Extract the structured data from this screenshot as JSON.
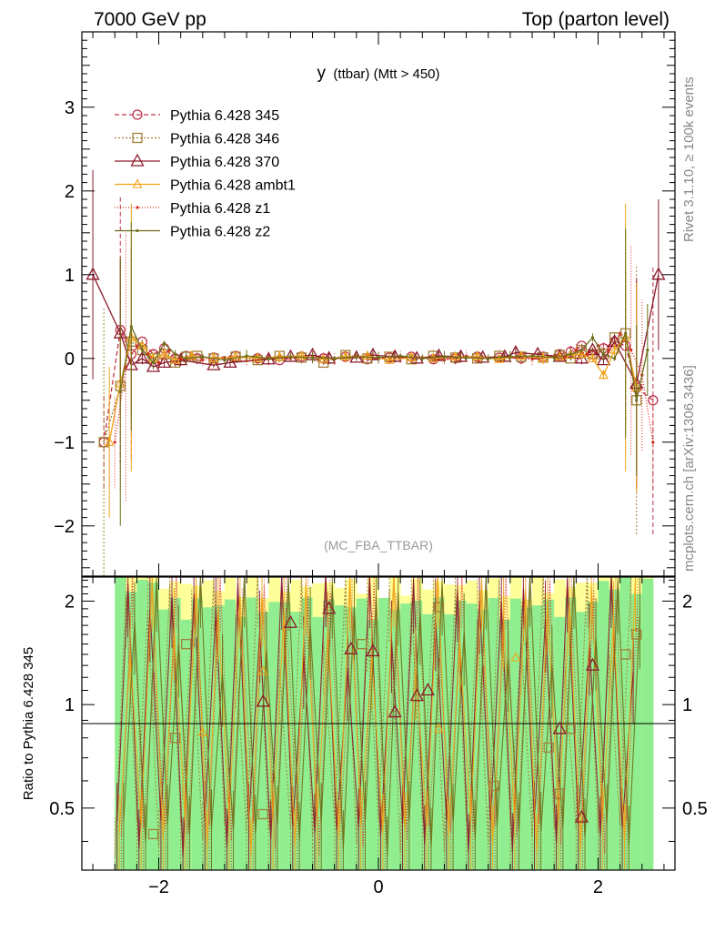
{
  "header": {
    "left": "7000 GeV pp",
    "right": "Top (parton level)"
  },
  "side_text": {
    "rivet": "Rivet 3.1.10, ≥ 100k events",
    "source": "mcplots.cern.ch [arXiv:1306.3436]"
  },
  "chart_data": [
    {
      "panel": "main",
      "type": "line",
      "title": "y (ttbar) (Mtt > 450)",
      "title_main": "y",
      "title_sub": "(ttbar) (Mtt > 450)",
      "watermark": "(MC_FBA_TTBAR)",
      "xlim": [
        -2.7,
        2.7
      ],
      "ylim": [
        -2.6,
        3.9
      ],
      "yticks": [
        -2,
        -1,
        0,
        1,
        2,
        3
      ],
      "ytick_labels": [
        "−2",
        "−1",
        "0",
        "1",
        "2",
        "3"
      ],
      "legend_position": "top-left",
      "series": [
        {
          "name": "Pythia 6.428 345",
          "color": "#c0334a",
          "dash": "5,3",
          "marker": "circle",
          "x": [
            -2.5,
            -2.35,
            -2.25,
            -2.15,
            -2.05,
            -1.95,
            -1.85,
            -1.75,
            -1.65,
            -1.5,
            -1.3,
            -1.1,
            -0.9,
            -0.7,
            -0.5,
            -0.3,
            -0.1,
            0.1,
            0.3,
            0.5,
            0.7,
            0.9,
            1.1,
            1.3,
            1.5,
            1.65,
            1.75,
            1.85,
            1.95,
            2.05,
            2.15,
            2.25,
            2.35,
            2.5
          ],
          "y": [
            -1.0,
            0.34,
            0.05,
            0.2,
            0.05,
            0.12,
            0.0,
            0.03,
            0.0,
            0.01,
            0.03,
            0.0,
            -0.02,
            0.02,
            0.0,
            0.02,
            -0.01,
            0.01,
            0.02,
            -0.01,
            0.0,
            0.02,
            0.01,
            0.0,
            0.02,
            0.05,
            0.08,
            0.15,
            0.05,
            0.12,
            0.2,
            0.15,
            -0.35,
            -0.5
          ]
        },
        {
          "name": "Pythia 6.428 346",
          "color": "#a0803a",
          "dash": "2,2",
          "marker": "square",
          "x": [
            -2.5,
            -2.35,
            -2.25,
            -2.15,
            -2.05,
            -1.95,
            -1.85,
            -1.75,
            -1.65,
            -1.5,
            -1.3,
            -1.1,
            -0.9,
            -0.7,
            -0.5,
            -0.3,
            -0.1,
            0.1,
            0.3,
            0.5,
            0.7,
            0.9,
            1.1,
            1.3,
            1.5,
            1.65,
            1.75,
            1.85,
            1.95,
            2.05,
            2.15,
            2.25,
            2.35
          ],
          "y": [
            -1.0,
            -0.33,
            0.2,
            0.1,
            0.0,
            0.05,
            -0.05,
            0.02,
            0.03,
            0.0,
            0.02,
            -0.02,
            0.03,
            0.01,
            -0.05,
            0.04,
            0.0,
            0.02,
            -0.01,
            0.03,
            0.01,
            0.0,
            0.03,
            0.02,
            0.01,
            0.04,
            0.0,
            0.1,
            0.05,
            0.05,
            0.25,
            0.3,
            -0.5
          ]
        },
        {
          "name": "Pythia 6.428 370",
          "color": "#8b1a2a",
          "dash": "",
          "marker": "triangle",
          "x": [
            -2.6,
            -2.35,
            -2.25,
            -2.15,
            -2.05,
            -1.95,
            -1.8,
            -1.5,
            -1.35,
            -1.0,
            -0.8,
            -0.6,
            -0.45,
            -0.2,
            -0.05,
            0.15,
            0.35,
            0.55,
            0.75,
            0.95,
            1.15,
            1.25,
            1.45,
            1.65,
            1.85,
            1.95,
            2.05,
            2.15,
            2.35,
            2.55
          ],
          "y": [
            1.0,
            0.3,
            -0.08,
            0.0,
            -0.1,
            -0.05,
            -0.02,
            -0.08,
            -0.05,
            -0.01,
            0.02,
            0.04,
            0.0,
            0.01,
            0.04,
            0.02,
            0.0,
            0.03,
            0.02,
            0.01,
            0.02,
            0.07,
            0.05,
            0.02,
            0.0,
            0.1,
            -0.02,
            0.2,
            -0.3,
            1.0
          ]
        },
        {
          "name": "Pythia 6.428 ambt1",
          "color": "#f0a318",
          "dash": "",
          "marker": "triangle-small",
          "x": [
            -2.45,
            -2.35,
            -2.25,
            -2.15,
            -2.05,
            -1.95,
            -1.85,
            -1.7,
            -1.5,
            -1.3,
            -1.1,
            -0.9,
            -0.7,
            -0.5,
            -0.3,
            -0.1,
            0.1,
            0.3,
            0.5,
            0.7,
            0.9,
            1.1,
            1.3,
            1.5,
            1.65,
            1.75,
            1.85,
            1.95,
            2.05,
            2.15,
            2.25,
            2.35
          ],
          "y": [
            -1.0,
            -0.3,
            0.25,
            0.15,
            0.0,
            0.05,
            -0.02,
            0.03,
            0.0,
            0.02,
            0.0,
            0.02,
            0.03,
            -0.01,
            0.02,
            0.03,
            -0.02,
            0.01,
            0.0,
            0.02,
            0.02,
            -0.01,
            0.03,
            0.0,
            0.02,
            0.04,
            0.05,
            0.0,
            -0.2,
            0.1,
            0.25,
            -0.35
          ]
        },
        {
          "name": "Pythia 6.428 z1",
          "color": "#d62a1e",
          "dash": "1,2",
          "marker": "dot",
          "x": [
            -2.4,
            -2.3,
            -2.2,
            -2.1,
            -2.0,
            -1.9,
            -1.8,
            -1.6,
            -1.4,
            -1.2,
            -1.0,
            -0.8,
            -0.6,
            -0.4,
            -0.2,
            0.0,
            0.2,
            0.4,
            0.6,
            0.8,
            1.0,
            1.2,
            1.4,
            1.6,
            1.7,
            1.8,
            1.9,
            2.0,
            2.1,
            2.2,
            2.3,
            2.4,
            2.5
          ],
          "y": [
            -1.0,
            -0.1,
            0.15,
            0.05,
            -0.05,
            0.1,
            0.0,
            -0.02,
            0.0,
            -0.03,
            0.01,
            0.0,
            0.02,
            -0.01,
            0.03,
            0.0,
            0.02,
            0.01,
            -0.02,
            0.03,
            0.0,
            0.02,
            -0.01,
            0.03,
            0.02,
            0.1,
            0.05,
            0.15,
            0.1,
            0.3,
            0.1,
            -0.2,
            -1.0
          ]
        },
        {
          "name": "Pythia 6.428 z2",
          "color": "#6e6e1a",
          "dash": "",
          "marker": "dot",
          "x": [
            -2.35,
            -2.25,
            -2.15,
            -2.05,
            -1.95,
            -1.85,
            -1.75,
            -1.6,
            -1.4,
            -1.2,
            -1.0,
            -0.8,
            -0.6,
            -0.4,
            -0.2,
            0.0,
            0.2,
            0.4,
            0.6,
            0.8,
            1.0,
            1.2,
            1.4,
            1.6,
            1.75,
            1.85,
            1.95,
            2.05,
            2.15,
            2.25,
            2.35,
            2.45
          ],
          "y": [
            -0.4,
            0.38,
            0.1,
            -0.05,
            0.18,
            0.05,
            0.0,
            0.02,
            -0.02,
            0.03,
            0.0,
            0.02,
            0.01,
            0.0,
            0.02,
            0.01,
            0.03,
            0.0,
            0.02,
            0.01,
            0.0,
            0.02,
            0.03,
            0.01,
            0.05,
            0.1,
            0.25,
            0.05,
            0.0,
            0.3,
            -0.5,
            0.1
          ]
        }
      ]
    },
    {
      "panel": "ratio",
      "type": "line",
      "ylabel": "Ratio to Pythia 6.428 345",
      "xlim": [
        -2.7,
        2.7
      ],
      "ylim": [
        0.33,
        2.35
      ],
      "xticks": [
        -2,
        0,
        2
      ],
      "xtick_labels": [
        "−2",
        "0",
        "2"
      ],
      "yticks": [
        0.5,
        1,
        2
      ],
      "ytick_labels": [
        "0.5",
        "1",
        "2"
      ],
      "reference": 1,
      "band_x": [
        -2.4,
        2.5
      ],
      "series_points": [
        {
          "name": "Pythia 6.428 346",
          "x": [
            -2.05,
            -1.85,
            -1.75,
            -1.05,
            -0.15,
            0.55,
            1.05,
            1.55,
            1.65,
            1.75,
            2.25,
            2.35
          ],
          "y": [
            0.42,
            0.8,
            1.5,
            0.48,
            1.5,
            1.92,
            0.58,
            0.75,
            0.55,
            0.85,
            1.4,
            1.6
          ]
        },
        {
          "name": "Pythia 6.428 370",
          "x": [
            -1.05,
            -0.8,
            -0.45,
            -0.25,
            -0.05,
            0.15,
            0.35,
            0.45,
            1.65,
            1.85,
            1.95
          ],
          "y": [
            1.02,
            1.73,
            1.9,
            1.45,
            1.43,
            0.95,
            1.06,
            1.1,
            0.85,
            0.47,
            1.3
          ]
        },
        {
          "name": "Pythia 6.428 ambt1",
          "x": [
            -1.05,
            -1.6,
            0.55,
            1.25
          ],
          "y": [
            1.25,
            0.83,
            0.85,
            1.37
          ]
        }
      ]
    }
  ]
}
